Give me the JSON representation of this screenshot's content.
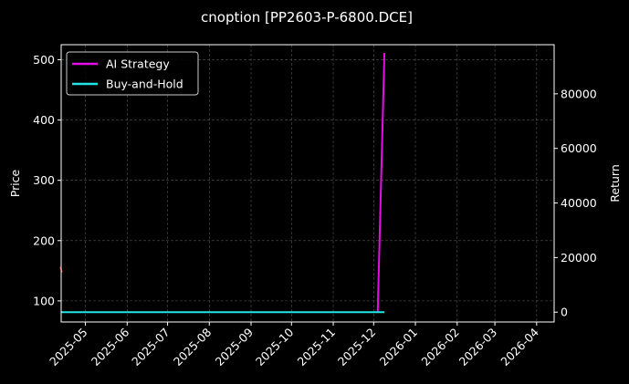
{
  "chart_data": {
    "type": "line",
    "title": "cnoption [PP2603-P-6800.DCE]",
    "xlabel": "",
    "ylabel": "Price",
    "y2label": "Return",
    "x_ticks": [
      "2025-05",
      "2025-06",
      "2025-07",
      "2025-08",
      "2025-09",
      "2025-10",
      "2025-11",
      "2025-12",
      "2026-01",
      "2026-02",
      "2026-03",
      "2026-04"
    ],
    "xlim": [
      "2025-04-13",
      "2026-04-14"
    ],
    "ylim": [
      65,
      525
    ],
    "yticks": [
      100,
      200,
      300,
      400,
      500
    ],
    "y2lim": [
      -3600,
      98000
    ],
    "y2ticks": [
      0,
      20000,
      40000,
      60000,
      80000
    ],
    "grid": true,
    "legend_position": "top-left",
    "series": [
      {
        "name": "AI Strategy",
        "axis": "right",
        "color": "#e60ee6",
        "points": [
          [
            "2025-12-04",
            0
          ],
          [
            "2025-12-09",
            95000
          ]
        ]
      },
      {
        "name": "Buy-and-Hold",
        "axis": "right",
        "color": "#22e5e5",
        "points": [
          [
            "2025-04-13",
            0
          ],
          [
            "2025-12-09",
            0
          ]
        ]
      }
    ],
    "price_marker": {
      "axis": "left",
      "color": "#ff3030",
      "point": [
        "2025-04-13",
        152
      ]
    }
  }
}
